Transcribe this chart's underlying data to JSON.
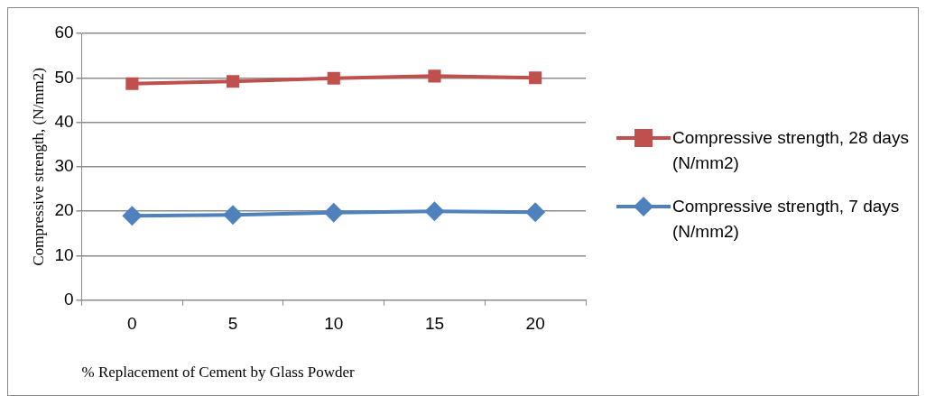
{
  "chart_data": {
    "type": "line",
    "xlabel": "% Replacement of Cement by Glass Powder",
    "ylabel": "Compressive strength, (N/mm2)",
    "categories": [
      "0",
      "5",
      "10",
      "15",
      "20"
    ],
    "series": [
      {
        "name": "Compressive strength, 28 days (N/mm2)",
        "color": "#c0504d",
        "marker": "square",
        "values": [
          48.7,
          49.2,
          49.9,
          50.4,
          50.0
        ]
      },
      {
        "name": "Compressive strength, 7 days (N/mm2)",
        "color": "#4f81bd",
        "marker": "diamond",
        "values": [
          19.0,
          19.2,
          19.7,
          20.0,
          19.8
        ]
      }
    ],
    "ylim": [
      0,
      60
    ],
    "yticks": [
      0,
      10,
      20,
      30,
      40,
      50,
      60
    ],
    "grid": "y",
    "legend": "right",
    "line_style": "solid"
  }
}
